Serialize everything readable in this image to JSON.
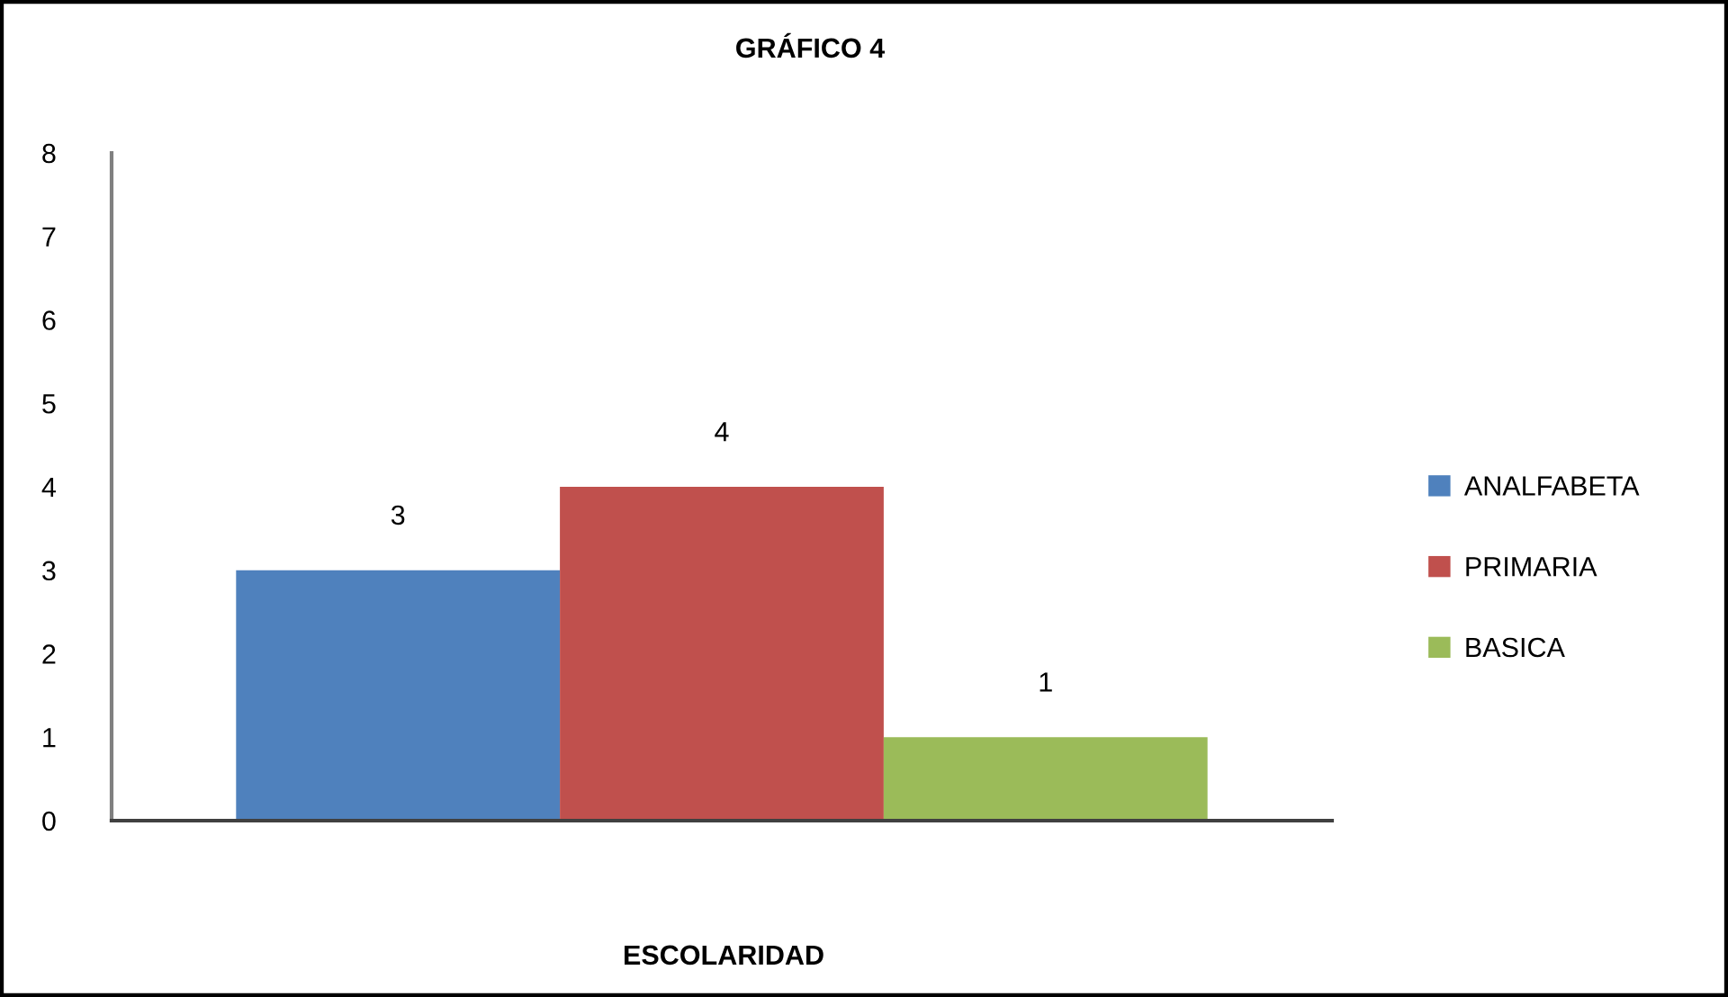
{
  "chart_data": {
    "type": "bar",
    "title": "GRÁFICO 4",
    "xlabel": "ESCOLARIDAD",
    "categories": [
      null
    ],
    "series": [
      {
        "name": "ANALFABETA",
        "color": "#4f81bd",
        "values": [
          3
        ]
      },
      {
        "name": "PRIMARIA",
        "color": "#c0504d",
        "values": [
          4
        ]
      },
      {
        "name": "BASICA",
        "color": "#9bbb59",
        "values": [
          1
        ]
      }
    ],
    "ylim": [
      0,
      8
    ],
    "yticks": [
      0,
      1,
      2,
      3,
      4,
      5,
      6,
      7,
      8
    ],
    "legend": "right",
    "data_labels": true
  }
}
